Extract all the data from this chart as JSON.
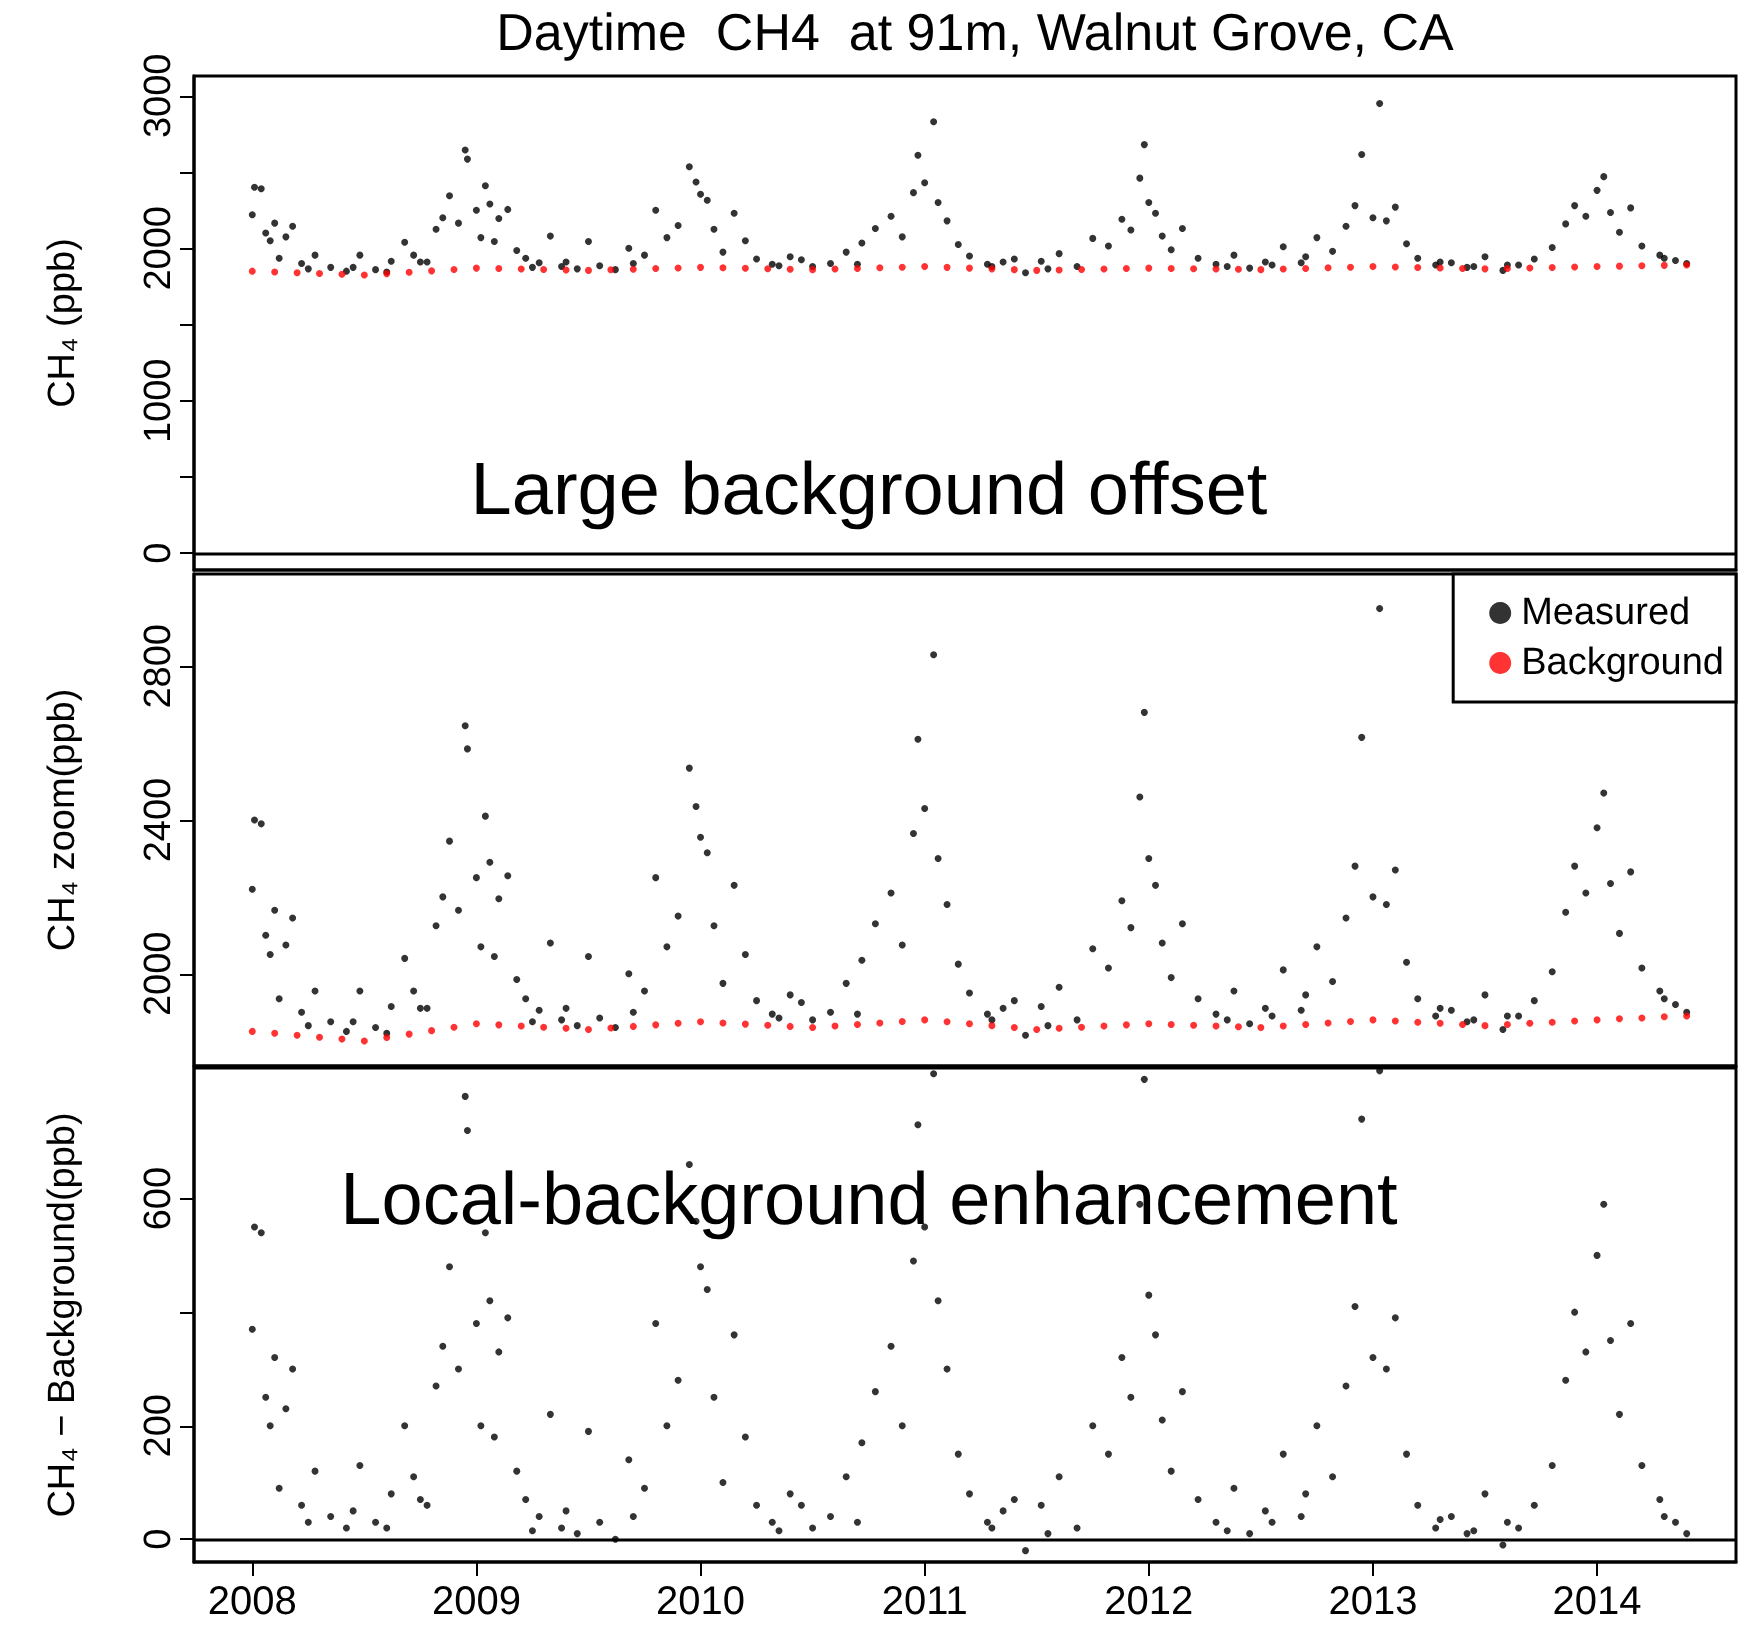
{
  "chart_data": [
    {
      "type": "scatter",
      "title": "Daytime  CH4  at 91m, Walnut Grove, CA",
      "ylabel": "CH₄ (ppb)",
      "annotations": [
        "Large background offset"
      ],
      "xlim": [
        2007.74,
        2014.62
      ],
      "ylim": [
        -110,
        3130
      ],
      "yticks": [
        0,
        {
          "value": 500,
          "label": null
        },
        1000,
        {
          "value": 1500,
          "label": null
        },
        2000,
        {
          "value": 2500,
          "label": null
        },
        3000
      ],
      "tick_labels": "y",
      "marker": "circle",
      "ref_lines": [
        {
          "axis": "y",
          "value": 0
        }
      ],
      "series": [
        {
          "color": "#000000",
          "x": [
            2008.0,
            2008.01,
            2008.04,
            2008.06,
            2008.08,
            2008.1,
            2008.12,
            2008.15,
            2008.18,
            2008.22,
            2008.28,
            2008.35,
            2008.42,
            2008.48,
            2008.55,
            2008.62,
            2008.68,
            2008.72,
            2008.78,
            2008.82,
            2008.85,
            2008.88,
            2008.92,
            2008.95,
            2008.96,
            2009.0,
            2009.02,
            2009.04,
            2009.06,
            2009.08,
            2009.1,
            2009.14,
            2009.18,
            2009.22,
            2009.28,
            2009.33,
            2009.38,
            2009.45,
            2009.5,
            2009.55,
            2009.62,
            2009.68,
            2009.75,
            2009.8,
            2009.85,
            2009.9,
            2009.95,
            2009.98,
            2010.0,
            2010.03,
            2010.06,
            2010.1,
            2010.15,
            2010.2,
            2010.25,
            2010.32,
            2010.4,
            2010.5,
            2010.58,
            2010.65,
            2010.72,
            2010.78,
            2010.85,
            2010.9,
            2010.95,
            2010.97,
            2011.0,
            2011.04,
            2011.06,
            2011.1,
            2011.15,
            2011.2,
            2011.28,
            2011.35,
            2011.45,
            2011.52,
            2011.6,
            2011.68,
            2011.75,
            2011.82,
            2011.88,
            2011.92,
            2011.96,
            2011.98,
            2012.0,
            2012.03,
            2012.06,
            2012.1,
            2012.15,
            2012.22,
            2012.3,
            2012.38,
            2012.45,
            2012.52,
            2012.6,
            2012.68,
            2012.75,
            2012.82,
            2012.88,
            2012.92,
            2012.95,
            2013.0,
            2013.03,
            2013.06,
            2013.1,
            2013.15,
            2013.2,
            2013.28,
            2013.35,
            2013.42,
            2013.5,
            2013.58,
            2013.65,
            2013.72,
            2013.8,
            2013.86,
            2013.9,
            2013.95,
            2014.0,
            2014.03,
            2014.06,
            2014.1,
            2014.15,
            2014.2,
            2014.28,
            2014.35,
            2014.4,
            2008.25,
            2008.45,
            2008.6,
            2008.75,
            2009.25,
            2009.4,
            2009.7,
            2010.35,
            2010.45,
            2010.7,
            2011.3,
            2011.4,
            2011.55,
            2012.35,
            2012.55,
            2012.7,
            2013.3,
            2013.45,
            2013.6,
            2014.3
          ],
          "values": [
            2220,
            2400,
            2390,
            2100,
            2050,
            2165,
            1935,
            2075,
            2145,
            1900,
            1955,
            1875,
            1850,
            1955,
            1860,
            1915,
            2040,
            1955,
            1910,
            2125,
            2200,
            2345,
            2165,
            2645,
            2585,
            2250,
            2070,
            2410,
            2290,
            2045,
            2195,
            2255,
            1985,
            1935,
            1905,
            2080,
            1880,
            1865,
            2045,
            1885,
            1860,
            2000,
            1955,
            2250,
            2070,
            2150,
            2535,
            2435,
            2355,
            2315,
            2125,
            1975,
            2230,
            2050,
            1930,
            1895,
            1945,
            1880,
            1900,
            1975,
            2035,
            2130,
            2210,
            2075,
            2365,
            2610,
            2430,
            2830,
            2300,
            2180,
            2025,
            1950,
            1895,
            1910,
            1840,
            1915,
            1965,
            1880,
            2065,
            2015,
            2190,
            2120,
            2460,
            2680,
            2300,
            2230,
            2080,
            1990,
            2130,
            1935,
            1895,
            1955,
            1870,
            1910,
            2010,
            1905,
            2070,
            1980,
            2145,
            2280,
            2615,
            2200,
            2950,
            2180,
            2270,
            2030,
            1935,
            1890,
            1905,
            1875,
            1945,
            1855,
            1890,
            1930,
            2005,
            2160,
            2280,
            2210,
            2380,
            2470,
            2235,
            2105,
            2265,
            2015,
            1955,
            1920,
            1900,
            1865,
            1875,
            1845,
            1910,
            1875,
            1910,
            1900,
            1885,
            1925,
            1895,
            1880,
            1930,
            1865,
            1880,
            1890,
            1945,
            1910,
            1880,
            1890,
            1935
          ]
        },
        {
          "color": "#ff0000",
          "x": [
            2008.0,
            2008.1,
            2008.2,
            2008.3,
            2008.4,
            2008.5,
            2008.6,
            2008.7,
            2008.8,
            2008.9,
            2009.0,
            2009.1,
            2009.2,
            2009.3,
            2009.4,
            2009.5,
            2009.6,
            2009.7,
            2009.8,
            2009.9,
            2010.0,
            2010.1,
            2010.2,
            2010.3,
            2010.4,
            2010.5,
            2010.6,
            2010.7,
            2010.8,
            2010.9,
            2011.0,
            2011.1,
            2011.2,
            2011.3,
            2011.4,
            2011.5,
            2011.6,
            2011.7,
            2011.8,
            2011.9,
            2012.0,
            2012.1,
            2012.2,
            2012.3,
            2012.4,
            2012.5,
            2012.6,
            2012.7,
            2012.8,
            2012.9,
            2013.0,
            2013.1,
            2013.2,
            2013.3,
            2013.4,
            2013.5,
            2013.6,
            2013.7,
            2013.8,
            2013.9,
            2014.0,
            2014.1,
            2014.2,
            2014.3,
            2014.4
          ],
          "values": [
            1850,
            1845,
            1840,
            1835,
            1830,
            1825,
            1834,
            1843,
            1852,
            1861,
            1870,
            1867,
            1864,
            1861,
            1858,
            1855,
            1859,
            1863,
            1867,
            1871,
            1875,
            1872,
            1869,
            1866,
            1863,
            1860,
            1864,
            1868,
            1872,
            1876,
            1880,
            1875,
            1870,
            1865,
            1860,
            1855,
            1858,
            1861,
            1864,
            1867,
            1870,
            1868,
            1866,
            1864,
            1862,
            1860,
            1864,
            1868,
            1872,
            1876,
            1880,
            1877,
            1874,
            1871,
            1868,
            1865,
            1868,
            1871,
            1874,
            1877,
            1880,
            1883,
            1885,
            1888,
            1890
          ]
        }
      ]
    },
    {
      "type": "scatter",
      "ylabel": "CH₄ zoom(ppb)",
      "xlim": [
        2007.74,
        2014.62
      ],
      "ylim": [
        1760,
        3040
      ],
      "yticks": [
        2000,
        2400,
        2800
      ],
      "tick_labels": "y",
      "marker": "circle",
      "legend": "top right",
      "series": [
        {
          "name": "Measured",
          "color": "#000000",
          "x": [
            2008.0,
            2008.01,
            2008.04,
            2008.06,
            2008.08,
            2008.1,
            2008.12,
            2008.15,
            2008.18,
            2008.22,
            2008.28,
            2008.35,
            2008.42,
            2008.48,
            2008.55,
            2008.62,
            2008.68,
            2008.72,
            2008.78,
            2008.82,
            2008.85,
            2008.88,
            2008.92,
            2008.95,
            2008.96,
            2009.0,
            2009.02,
            2009.04,
            2009.06,
            2009.08,
            2009.1,
            2009.14,
            2009.18,
            2009.22,
            2009.28,
            2009.33,
            2009.38,
            2009.45,
            2009.5,
            2009.55,
            2009.62,
            2009.68,
            2009.75,
            2009.8,
            2009.85,
            2009.9,
            2009.95,
            2009.98,
            2010.0,
            2010.03,
            2010.06,
            2010.1,
            2010.15,
            2010.2,
            2010.25,
            2010.32,
            2010.4,
            2010.5,
            2010.58,
            2010.65,
            2010.72,
            2010.78,
            2010.85,
            2010.9,
            2010.95,
            2010.97,
            2011.0,
            2011.04,
            2011.06,
            2011.1,
            2011.15,
            2011.2,
            2011.28,
            2011.35,
            2011.45,
            2011.52,
            2011.6,
            2011.68,
            2011.75,
            2011.82,
            2011.88,
            2011.92,
            2011.96,
            2011.98,
            2012.0,
            2012.03,
            2012.06,
            2012.1,
            2012.15,
            2012.22,
            2012.3,
            2012.38,
            2012.45,
            2012.52,
            2012.6,
            2012.68,
            2012.75,
            2012.82,
            2012.88,
            2012.92,
            2012.95,
            2013.0,
            2013.03,
            2013.06,
            2013.1,
            2013.15,
            2013.2,
            2013.28,
            2013.35,
            2013.42,
            2013.5,
            2013.58,
            2013.65,
            2013.72,
            2013.8,
            2013.86,
            2013.9,
            2013.95,
            2014.0,
            2014.03,
            2014.06,
            2014.1,
            2014.15,
            2014.2,
            2014.28,
            2014.35,
            2014.4,
            2008.25,
            2008.45,
            2008.6,
            2008.75,
            2009.25,
            2009.4,
            2009.7,
            2010.35,
            2010.45,
            2010.7,
            2011.3,
            2011.4,
            2011.55,
            2012.35,
            2012.55,
            2012.7,
            2013.3,
            2013.45,
            2013.6,
            2014.3
          ],
          "values": [
            2220,
            2400,
            2390,
            2100,
            2050,
            2165,
            1935,
            2075,
            2145,
            1900,
            1955,
            1875,
            1850,
            1955,
            1860,
            1915,
            2040,
            1955,
            1910,
            2125,
            2200,
            2345,
            2165,
            2645,
            2585,
            2250,
            2070,
            2410,
            2290,
            2045,
            2195,
            2255,
            1985,
            1935,
            1905,
            2080,
            1880,
            1865,
            2045,
            1885,
            1860,
            2000,
            1955,
            2250,
            2070,
            2150,
            2535,
            2435,
            2355,
            2315,
            2125,
            1975,
            2230,
            2050,
            1930,
            1895,
            1945,
            1880,
            1900,
            1975,
            2035,
            2130,
            2210,
            2075,
            2365,
            2610,
            2430,
            2830,
            2300,
            2180,
            2025,
            1950,
            1895,
            1910,
            1840,
            1915,
            1965,
            1880,
            2065,
            2015,
            2190,
            2120,
            2460,
            2680,
            2300,
            2230,
            2080,
            1990,
            2130,
            1935,
            1895,
            1955,
            1870,
            1910,
            2010,
            1905,
            2070,
            1980,
            2145,
            2280,
            2615,
            2200,
            2950,
            2180,
            2270,
            2030,
            1935,
            1890,
            1905,
            1875,
            1945,
            1855,
            1890,
            1930,
            2005,
            2160,
            2280,
            2210,
            2380,
            2470,
            2235,
            2105,
            2265,
            2015,
            1955,
            1920,
            1900,
            1865,
            1875,
            1845,
            1910,
            1875,
            1910,
            1900,
            1885,
            1925,
            1895,
            1880,
            1930,
            1865,
            1880,
            1890,
            1945,
            1910,
            1880,
            1890,
            1935
          ]
        },
        {
          "name": "Background",
          "color": "#ff0000",
          "x": [
            2008.0,
            2008.1,
            2008.2,
            2008.3,
            2008.4,
            2008.5,
            2008.6,
            2008.7,
            2008.8,
            2008.9,
            2009.0,
            2009.1,
            2009.2,
            2009.3,
            2009.4,
            2009.5,
            2009.6,
            2009.7,
            2009.8,
            2009.9,
            2010.0,
            2010.1,
            2010.2,
            2010.3,
            2010.4,
            2010.5,
            2010.6,
            2010.7,
            2010.8,
            2010.9,
            2011.0,
            2011.1,
            2011.2,
            2011.3,
            2011.4,
            2011.5,
            2011.6,
            2011.7,
            2011.8,
            2011.9,
            2012.0,
            2012.1,
            2012.2,
            2012.3,
            2012.4,
            2012.5,
            2012.6,
            2012.7,
            2012.8,
            2012.9,
            2013.0,
            2013.1,
            2013.2,
            2013.3,
            2013.4,
            2013.5,
            2013.6,
            2013.7,
            2013.8,
            2013.9,
            2014.0,
            2014.1,
            2014.2,
            2014.3,
            2014.4
          ],
          "values": [
            1850,
            1845,
            1840,
            1835,
            1830,
            1825,
            1834,
            1843,
            1852,
            1861,
            1870,
            1867,
            1864,
            1861,
            1858,
            1855,
            1859,
            1863,
            1867,
            1871,
            1875,
            1872,
            1869,
            1866,
            1863,
            1860,
            1864,
            1868,
            1872,
            1876,
            1880,
            1875,
            1870,
            1865,
            1860,
            1855,
            1858,
            1861,
            1864,
            1867,
            1870,
            1868,
            1866,
            1864,
            1862,
            1860,
            1864,
            1868,
            1872,
            1876,
            1880,
            1877,
            1874,
            1871,
            1868,
            1865,
            1868,
            1871,
            1874,
            1877,
            1880,
            1883,
            1885,
            1888,
            1890
          ]
        }
      ]
    },
    {
      "type": "scatter",
      "ylabel": "CH₄ − Background(ppb)",
      "annotations": [
        "Local-background enhancement"
      ],
      "xlim": [
        2007.74,
        2014.62
      ],
      "xticks": [
        2008,
        2009,
        2010,
        2011,
        2012,
        2013,
        2014
      ],
      "ylim": [
        -40,
        830
      ],
      "yticks": [
        0,
        200,
        {
          "value": 400,
          "label": null
        },
        600
      ],
      "marker": "circle",
      "ref_lines": [
        {
          "axis": "y",
          "value": 0
        }
      ],
      "series": [
        {
          "color": "#000000",
          "x": [
            2008.0,
            2008.01,
            2008.04,
            2008.06,
            2008.08,
            2008.1,
            2008.12,
            2008.15,
            2008.18,
            2008.22,
            2008.28,
            2008.35,
            2008.42,
            2008.48,
            2008.55,
            2008.62,
            2008.68,
            2008.72,
            2008.78,
            2008.82,
            2008.85,
            2008.88,
            2008.92,
            2008.95,
            2008.96,
            2009.0,
            2009.02,
            2009.04,
            2009.06,
            2009.08,
            2009.1,
            2009.14,
            2009.18,
            2009.22,
            2009.28,
            2009.33,
            2009.38,
            2009.45,
            2009.5,
            2009.55,
            2009.62,
            2009.68,
            2009.75,
            2009.8,
            2009.85,
            2009.9,
            2009.95,
            2009.98,
            2010.0,
            2010.03,
            2010.06,
            2010.1,
            2010.15,
            2010.2,
            2010.25,
            2010.32,
            2010.4,
            2010.5,
            2010.58,
            2010.65,
            2010.72,
            2010.78,
            2010.85,
            2010.9,
            2010.95,
            2010.97,
            2011.0,
            2011.04,
            2011.06,
            2011.1,
            2011.15,
            2011.2,
            2011.28,
            2011.35,
            2011.45,
            2011.52,
            2011.6,
            2011.68,
            2011.75,
            2011.82,
            2011.88,
            2011.92,
            2011.96,
            2011.98,
            2012.0,
            2012.03,
            2012.06,
            2012.1,
            2012.15,
            2012.22,
            2012.3,
            2012.38,
            2012.45,
            2012.52,
            2012.6,
            2012.68,
            2012.75,
            2012.82,
            2012.88,
            2012.92,
            2012.95,
            2013.0,
            2013.03,
            2013.06,
            2013.1,
            2013.15,
            2013.2,
            2013.28,
            2013.35,
            2013.42,
            2013.5,
            2013.58,
            2013.65,
            2013.72,
            2013.8,
            2013.86,
            2013.9,
            2013.95,
            2014.0,
            2014.03,
            2014.06,
            2014.1,
            2014.15,
            2014.2,
            2014.28,
            2014.35,
            2014.4,
            2008.25,
            2008.45,
            2008.6,
            2008.75,
            2009.25,
            2009.4,
            2009.7,
            2010.35,
            2010.45,
            2010.7,
            2011.3,
            2011.4,
            2011.55,
            2012.35,
            2012.55,
            2012.7,
            2013.3,
            2013.45,
            2013.6,
            2014.3
          ],
          "values": [
            370,
            550,
            540,
            250,
            200,
            320,
            90,
            230,
            300,
            60,
            120,
            40,
            20,
            130,
            30,
            80,
            200,
            110,
            60,
            270,
            340,
            480,
            300,
            780,
            720,
            380,
            200,
            540,
            420,
            180,
            330,
            390,
            120,
            70,
            40,
            220,
            20,
            10,
            190,
            30,
            0,
            140,
            90,
            380,
            200,
            280,
            660,
            560,
            480,
            440,
            250,
            100,
            360,
            180,
            60,
            30,
            80,
            20,
            40,
            110,
            170,
            260,
            340,
            200,
            490,
            730,
            550,
            820,
            420,
            300,
            150,
            80,
            30,
            50,
            -20,
            60,
            110,
            20,
            200,
            150,
            320,
            250,
            590,
            810,
            430,
            360,
            210,
            120,
            260,
            70,
            30,
            90,
            10,
            50,
            150,
            40,
            200,
            110,
            270,
            410,
            740,
            320,
            825,
            300,
            390,
            150,
            60,
            20,
            40,
            10,
            80,
            -10,
            20,
            60,
            130,
            280,
            400,
            330,
            500,
            590,
            350,
            220,
            380,
            130,
            70,
            30,
            10,
            30,
            50,
            20,
            70,
            15,
            50,
            40,
            15,
            60,
            30,
            20,
            70,
            10,
            15,
            30,
            80,
            35,
            15,
            30,
            40
          ]
        }
      ]
    }
  ]
}
